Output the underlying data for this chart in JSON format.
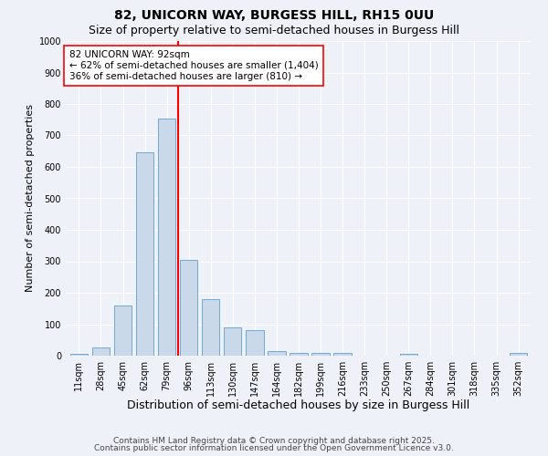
{
  "title1": "82, UNICORN WAY, BURGESS HILL, RH15 0UU",
  "title2": "Size of property relative to semi-detached houses in Burgess Hill",
  "xlabel": "Distribution of semi-detached houses by size in Burgess Hill",
  "ylabel": "Number of semi-detached properties",
  "categories": [
    "11sqm",
    "28sqm",
    "45sqm",
    "62sqm",
    "79sqm",
    "96sqm",
    "113sqm",
    "130sqm",
    "147sqm",
    "164sqm",
    "182sqm",
    "199sqm",
    "216sqm",
    "233sqm",
    "250sqm",
    "267sqm",
    "284sqm",
    "301sqm",
    "318sqm",
    "335sqm",
    "352sqm"
  ],
  "values": [
    5,
    25,
    160,
    645,
    755,
    305,
    180,
    90,
    80,
    15,
    10,
    10,
    10,
    0,
    0,
    5,
    0,
    0,
    0,
    0,
    10
  ],
  "bar_color": "#c9d9ea",
  "bar_edge_color": "#6fa8d6",
  "bar_width": 0.8,
  "vline_x": 4.5,
  "vline_color": "red",
  "annotation_text": "82 UNICORN WAY: 92sqm\n← 62% of semi-detached houses are smaller (1,404)\n36% of semi-detached houses are larger (810) →",
  "ylim": [
    0,
    1000
  ],
  "yticks": [
    0,
    100,
    200,
    300,
    400,
    500,
    600,
    700,
    800,
    900,
    1000
  ],
  "footer1": "Contains HM Land Registry data © Crown copyright and database right 2025.",
  "footer2": "Contains public sector information licensed under the Open Government Licence v3.0.",
  "background_color": "#eef2f8",
  "grid_color": "#ffffff",
  "title1_fontsize": 10,
  "title2_fontsize": 9,
  "xlabel_fontsize": 9,
  "ylabel_fontsize": 8,
  "tick_fontsize": 7,
  "footer_fontsize": 6.5
}
